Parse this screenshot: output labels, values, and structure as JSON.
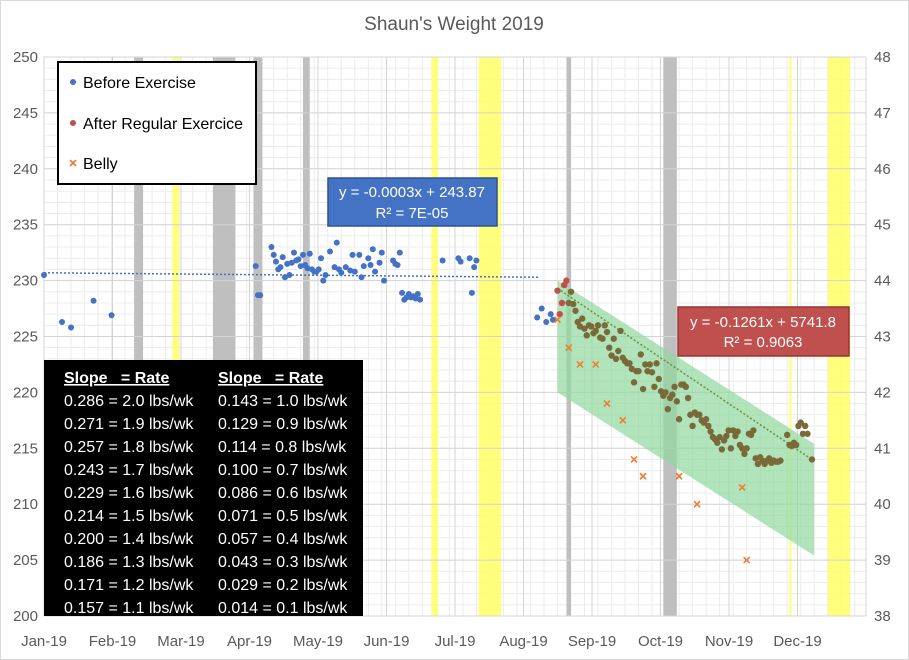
{
  "chart_data": {
    "type": "scatter",
    "title": "Shaun's Weight 2019",
    "x_tick_labels": [
      "Jan-19",
      "Feb-19",
      "Mar-19",
      "Apr-19",
      "May-19",
      "Jun-19",
      "Jul-19",
      "Aug-19",
      "Sep-19",
      "Oct-19",
      "Nov-19",
      "Dec-19"
    ],
    "x_range_days": [
      0,
      365
    ],
    "y_left_range": [
      200,
      250
    ],
    "y_left_ticks": [
      "200",
      "205",
      "210",
      "215",
      "220",
      "225",
      "230",
      "235",
      "240",
      "245",
      "250"
    ],
    "y_right_range": [
      38,
      48
    ],
    "y_right_ticks": [
      "38",
      "39",
      "40",
      "41",
      "42",
      "43",
      "44",
      "45",
      "46",
      "47",
      "48"
    ],
    "grid": true,
    "legend_position": "top-left",
    "colors": {
      "before": "#4472c4",
      "after": "#c0504d",
      "after_fill": "#7a6a3a",
      "belly": "#ed7d31",
      "gray_band": "#bfbfbf",
      "yellow_band": "#ffff66",
      "green_band": "#92d8a0",
      "eq_blue": "#4472c4",
      "eq_red": "#c0504d",
      "table_bg": "#000000"
    },
    "legend": [
      {
        "label": "Before Exercise",
        "marker": "dot",
        "color": "#4472c4"
      },
      {
        "label": "After Regular Exercice",
        "marker": "dot",
        "color": "#c0504d"
      },
      {
        "label": "Belly",
        "marker": "x",
        "color": "#ed7d31"
      }
    ],
    "gray_bands": [
      [
        40,
        44
      ],
      [
        75,
        85
      ],
      [
        93,
        97
      ],
      [
        115,
        118
      ],
      [
        232,
        234
      ],
      [
        275,
        281
      ]
    ],
    "yellow_bands": [
      [
        57,
        60
      ],
      [
        172,
        175
      ],
      [
        193,
        203
      ],
      [
        331,
        332
      ],
      [
        348,
        358
      ]
    ],
    "series": [
      {
        "name": "Before Exercise",
        "color": "#4472c4",
        "points": [
          [
            0,
            230.5
          ],
          [
            8,
            226.3
          ],
          [
            12,
            225.8
          ],
          [
            22,
            228.2
          ],
          [
            30,
            226.9
          ],
          [
            94,
            231.3
          ],
          [
            95,
            228.7
          ],
          [
            96,
            228.7
          ],
          [
            101,
            233.0
          ],
          [
            102,
            232.3
          ],
          [
            103,
            231.7
          ],
          [
            104,
            231.0
          ],
          [
            105,
            231.2
          ],
          [
            106,
            232.1
          ],
          [
            107,
            230.3
          ],
          [
            108,
            231.5
          ],
          [
            109,
            230.5
          ],
          [
            110,
            231.6
          ],
          [
            111,
            232.5
          ],
          [
            112,
            231.8
          ],
          [
            113,
            231.9
          ],
          [
            114,
            231.3
          ],
          [
            115,
            232.3
          ],
          [
            116,
            231.4
          ],
          [
            117,
            231.1
          ],
          [
            118,
            232.4
          ],
          [
            119,
            231.0
          ],
          [
            120,
            230.8
          ],
          [
            121,
            230.8
          ],
          [
            122,
            231.0
          ],
          [
            123,
            232.0
          ],
          [
            124,
            230.0
          ],
          [
            125,
            230.5
          ],
          [
            127,
            232.6
          ],
          [
            129,
            231.2
          ],
          [
            130,
            233.4
          ],
          [
            131,
            231.0
          ],
          [
            132,
            230.7
          ],
          [
            134,
            231.2
          ],
          [
            136,
            230.9
          ],
          [
            137,
            232.3
          ],
          [
            138,
            230.8
          ],
          [
            140,
            232.3
          ],
          [
            141,
            230.3
          ],
          [
            142,
            231.3
          ],
          [
            144,
            232.0
          ],
          [
            145,
            231.4
          ],
          [
            146,
            232.8
          ],
          [
            147,
            230.8
          ],
          [
            149,
            231.6
          ],
          [
            150,
            232.5
          ],
          [
            151,
            230.0
          ],
          [
            155,
            231.8
          ],
          [
            156,
            231.5
          ],
          [
            157,
            231.4
          ],
          [
            158,
            232.5
          ],
          [
            159,
            228.9
          ],
          [
            160,
            228.3
          ],
          [
            161,
            228.5
          ],
          [
            162,
            228.8
          ],
          [
            163,
            228.5
          ],
          [
            164,
            228.6
          ],
          [
            165,
            228.4
          ],
          [
            166,
            228.8
          ],
          [
            167,
            228.3
          ],
          [
            177,
            231.8
          ],
          [
            184,
            232.0
          ],
          [
            185,
            231.7
          ],
          [
            189,
            232.0
          ],
          [
            190,
            228.9
          ],
          [
            191,
            231.2
          ],
          [
            192,
            231.8
          ],
          [
            219,
            226.7
          ],
          [
            221,
            227.5
          ],
          [
            223,
            226.3
          ],
          [
            225,
            227.0
          ],
          [
            226,
            226.5
          ]
        ],
        "trendline": {
          "equation": "y = -0.0003x + 243.87",
          "r2": "R² = 7E-05",
          "x": [
            0,
            220
          ],
          "y": [
            230.7,
            230.3
          ]
        }
      },
      {
        "name": "After Regular Exercice",
        "color": "#c0504d",
        "points": [
          [
            228,
            229.1
          ],
          [
            229,
            227.0
          ],
          [
            230,
            228.0
          ],
          [
            231,
            229.6
          ],
          [
            232,
            230.0
          ],
          [
            233,
            228.0
          ],
          [
            234,
            229.0
          ],
          [
            235,
            227.9
          ],
          [
            236,
            227.3
          ],
          [
            237,
            226.3
          ],
          [
            238,
            225.9
          ],
          [
            239,
            226.6
          ],
          [
            240,
            225.7
          ],
          [
            241,
            225.1
          ],
          [
            242,
            226.0
          ],
          [
            243,
            225.9
          ],
          [
            244,
            225.3
          ],
          [
            245,
            225.5
          ],
          [
            246,
            226.0
          ],
          [
            247,
            224.9
          ],
          [
            248,
            224.8
          ],
          [
            249,
            226.0
          ],
          [
            250,
            225.4
          ],
          [
            251,
            224.0
          ],
          [
            252,
            223.3
          ],
          [
            253,
            224.8
          ],
          [
            254,
            223.0
          ],
          [
            255,
            223.7
          ],
          [
            256,
            225.5
          ],
          [
            257,
            223.1
          ],
          [
            258,
            222.8
          ],
          [
            259,
            222.6
          ],
          [
            260,
            222.6
          ],
          [
            261,
            222.1
          ],
          [
            262,
            220.9
          ],
          [
            263,
            221.9
          ],
          [
            264,
            221.9
          ],
          [
            265,
            223.4
          ],
          [
            266,
            220.3
          ],
          [
            267,
            222.5
          ],
          [
            268,
            221.9
          ],
          [
            269,
            222.5
          ],
          [
            270,
            221.8
          ],
          [
            271,
            220.5
          ],
          [
            272,
            222.6
          ],
          [
            273,
            221.2
          ],
          [
            274,
            220.1
          ],
          [
            275,
            219.7
          ],
          [
            276,
            220.0
          ],
          [
            277,
            218.5
          ],
          [
            278,
            219.5
          ],
          [
            279,
            219.8
          ],
          [
            280,
            220.5
          ],
          [
            281,
            219.2
          ],
          [
            282,
            217.6
          ],
          [
            283,
            220.7
          ],
          [
            284,
            220.7
          ],
          [
            285,
            220.5
          ],
          [
            286,
            219.5
          ],
          [
            287,
            218.0
          ],
          [
            288,
            217.0
          ],
          [
            289,
            218.2
          ],
          [
            290,
            218.0
          ],
          [
            291,
            218.0
          ],
          [
            292,
            217.5
          ],
          [
            293,
            217.3
          ],
          [
            294,
            217.6
          ],
          [
            295,
            217.0
          ],
          [
            296,
            216.5
          ],
          [
            297,
            216.0
          ],
          [
            298,
            215.8
          ],
          [
            299,
            215.5
          ],
          [
            300,
            216.0
          ],
          [
            301,
            214.9
          ],
          [
            302,
            215.7
          ],
          [
            303,
            216.1
          ],
          [
            304,
            216.6
          ],
          [
            305,
            215.0
          ],
          [
            306,
            216.6
          ],
          [
            307,
            216.1
          ],
          [
            308,
            216.5
          ],
          [
            309,
            215.3
          ],
          [
            310,
            215.0
          ],
          [
            311,
            214.5
          ],
          [
            312,
            215.0
          ],
          [
            313,
            216.3
          ],
          [
            314,
            216.2
          ],
          [
            315,
            216.6
          ],
          [
            316,
            214.1
          ],
          [
            317,
            213.6
          ],
          [
            318,
            214.2
          ],
          [
            319,
            213.9
          ],
          [
            320,
            213.6
          ],
          [
            321,
            213.9
          ],
          [
            322,
            214.1
          ],
          [
            323,
            213.7
          ],
          [
            324,
            213.9
          ],
          [
            325,
            213.8
          ],
          [
            326,
            213.8
          ],
          [
            327,
            213.9
          ],
          [
            330,
            216.2
          ],
          [
            331,
            215.3
          ],
          [
            332,
            215.2
          ],
          [
            333,
            215.5
          ],
          [
            334,
            215.3
          ],
          [
            335,
            217.0
          ],
          [
            336,
            217.3
          ],
          [
            337,
            216.3
          ],
          [
            338,
            217.0
          ],
          [
            339,
            216.3
          ],
          [
            341,
            214.0
          ]
        ],
        "trendline": {
          "equation": "y = -0.1261x + 5741.8",
          "r2": "R² = 0.9063",
          "x": [
            228,
            341
          ],
          "y": [
            229.3,
            214.0
          ]
        }
      },
      {
        "name": "Belly",
        "color": "#ed7d31",
        "axis": "right",
        "points": [
          [
            228,
            43.3
          ],
          [
            233,
            42.8
          ],
          [
            238,
            42.5
          ],
          [
            245,
            42.5
          ],
          [
            250,
            41.8
          ],
          [
            257,
            41.5
          ],
          [
            262,
            40.8
          ],
          [
            266,
            40.5
          ],
          [
            282,
            40.5
          ],
          [
            290,
            40.0
          ],
          [
            310,
            40.3
          ],
          [
            312,
            39.0
          ]
        ]
      }
    ],
    "green_band": [
      [
        228,
        230.0
      ],
      [
        342,
        215.4
      ],
      [
        342,
        205.4
      ],
      [
        228,
        220.0
      ]
    ],
    "slope_table": {
      "headers": [
        "Slope   = Rate",
        "Slope   = Rate"
      ],
      "col1": [
        "0.286 = 2.0 lbs/wk",
        "0.271 = 1.9 lbs/wk",
        "0.257 = 1.8 lbs/wk",
        "0.243 = 1.7 lbs/wk",
        "0.229 = 1.6 lbs/wk",
        "0.214 = 1.5 lbs/wk",
        "0.200 = 1.4 lbs/wk",
        "0.186 = 1.3 lbs/wk",
        "0.171 = 1.2 lbs/wk",
        "0.157 = 1.1 lbs/wk"
      ],
      "col2": [
        "0.143 = 1.0 lbs/wk",
        "0.129 = 0.9 lbs/wk",
        "0.114 = 0.8 lbs/wk",
        "0.100 = 0.7 lbs/wk",
        "0.086 = 0.6 lbs/wk",
        "0.071 = 0.5 lbs/wk",
        "0.057 = 0.4 lbs/wk",
        "0.043 = 0.3 lbs/wk",
        "0.029 = 0.2 lbs/wk",
        "0.014 = 0.1 lbs/wk"
      ]
    }
  }
}
